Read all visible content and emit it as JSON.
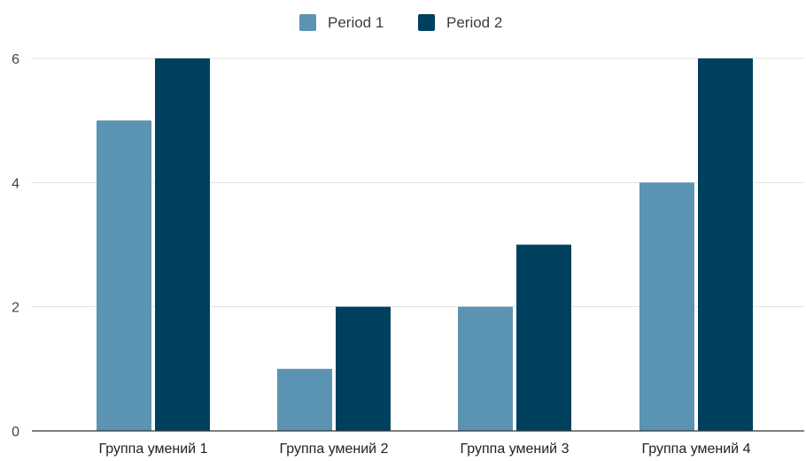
{
  "chart_data": {
    "type": "bar",
    "title": "",
    "xlabel": "",
    "ylabel": "",
    "categories": [
      "Группа умений 1",
      "Группа умений 2",
      "Группа умений 3",
      "Группа умений 4"
    ],
    "series": [
      {
        "name": "Period 1",
        "values": [
          5,
          1,
          2,
          4
        ],
        "color": "#5b93b2"
      },
      {
        "name": "Period 2",
        "values": [
          6,
          2,
          3,
          6
        ],
        "color": "#00405f"
      }
    ],
    "ylim": [
      0,
      6
    ],
    "yticks": [
      0,
      2,
      4,
      6
    ],
    "grid": true,
    "legend_position": "top-center"
  },
  "colors": {
    "gridline": "#e0e0e0",
    "baseline": "#333333"
  }
}
